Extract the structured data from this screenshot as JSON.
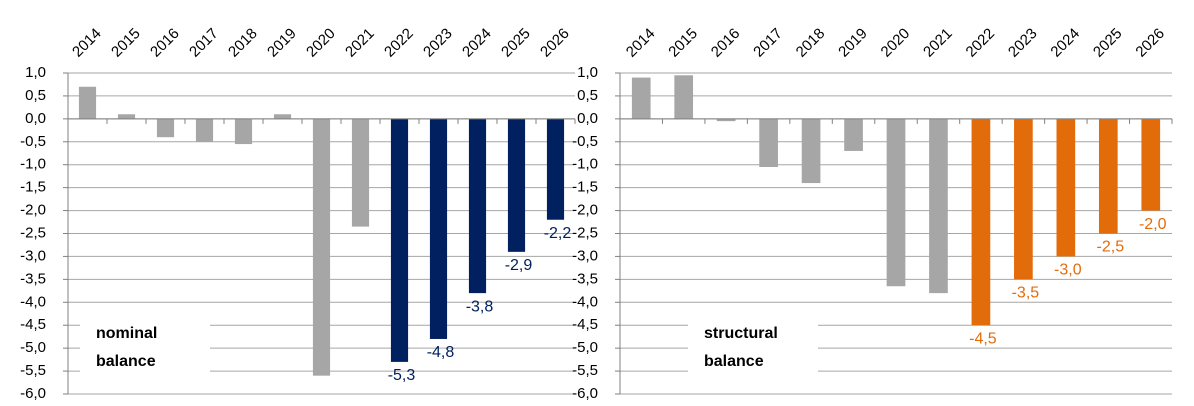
{
  "chart_data": [
    {
      "type": "bar",
      "annotation": [
        "nominal",
        "balance"
      ],
      "categories": [
        "2014",
        "2015",
        "2016",
        "2017",
        "2018",
        "2019",
        "2020",
        "2021",
        "2022",
        "2023",
        "2024",
        "2025",
        "2026"
      ],
      "values": [
        0.7,
        0.1,
        -0.4,
        -0.5,
        -0.55,
        0.1,
        -5.6,
        -2.35,
        -5.3,
        -4.8,
        -3.8,
        -2.9,
        -2.2
      ],
      "value_labels": [
        null,
        null,
        null,
        null,
        null,
        null,
        null,
        null,
        "-5,3",
        "-4,8",
        "-3,8",
        "-2,9",
        "-2,2"
      ],
      "colors": [
        "#a6a6a6",
        "#a6a6a6",
        "#a6a6a6",
        "#a6a6a6",
        "#a6a6a6",
        "#a6a6a6",
        "#a6a6a6",
        "#a6a6a6",
        "#002060",
        "#002060",
        "#002060",
        "#002060",
        "#002060"
      ],
      "ylim": [
        -6,
        1
      ],
      "yticks": [
        {
          "value": 1,
          "label": "1,0"
        },
        {
          "value": 0.5,
          "label": "0,5"
        },
        {
          "value": 0,
          "label": "0,0"
        },
        {
          "value": -0.5,
          "label": "-0,5"
        },
        {
          "value": -1,
          "label": "-1,0"
        },
        {
          "value": -1.5,
          "label": "-1,5"
        },
        {
          "value": -2,
          "label": "-2,0"
        },
        {
          "value": -2.5,
          "label": "-2,5"
        },
        {
          "value": -3,
          "label": "-3,0"
        },
        {
          "value": -3.5,
          "label": "-3,5"
        },
        {
          "value": -4,
          "label": "-4,0"
        },
        {
          "value": -4.5,
          "label": "-4,5"
        },
        {
          "value": -5,
          "label": "-5,0"
        },
        {
          "value": -5.5,
          "label": "-5,5"
        },
        {
          "value": -6,
          "label": "-6,0"
        }
      ],
      "grid": true
    },
    {
      "type": "bar",
      "annotation": [
        "structural",
        "balance"
      ],
      "categories": [
        "2014",
        "2015",
        "2016",
        "2017",
        "2018",
        "2019",
        "2020",
        "2021",
        "2022",
        "2023",
        "2024",
        "2025",
        "2026"
      ],
      "values": [
        0.9,
        0.95,
        -0.05,
        -1.05,
        -1.4,
        -0.7,
        -3.65,
        -3.8,
        -4.5,
        -3.5,
        -3.0,
        -2.5,
        -2.0
      ],
      "value_labels": [
        null,
        null,
        null,
        null,
        null,
        null,
        null,
        null,
        "-4,5",
        "-3,5",
        "-3,0",
        "-2,5",
        "-2,0"
      ],
      "colors": [
        "#a6a6a6",
        "#a6a6a6",
        "#a6a6a6",
        "#a6a6a6",
        "#a6a6a6",
        "#a6a6a6",
        "#a6a6a6",
        "#a6a6a6",
        "#e36c0a",
        "#e36c0a",
        "#e36c0a",
        "#e36c0a",
        "#e36c0a"
      ],
      "ylim": [
        -6,
        1
      ],
      "yticks": [
        {
          "value": 1,
          "label": "1,0"
        },
        {
          "value": 0.5,
          "label": "0,5"
        },
        {
          "value": 0,
          "label": "0,0"
        },
        {
          "value": -0.5,
          "label": "-0,5"
        },
        {
          "value": -1,
          "label": "-1,0"
        },
        {
          "value": -1.5,
          "label": "-1,5"
        },
        {
          "value": -2,
          "label": "-2,0"
        },
        {
          "value": -2.5,
          "label": "-2,5"
        },
        {
          "value": -3,
          "label": "-3,0"
        },
        {
          "value": -3.5,
          "label": "-3,5"
        },
        {
          "value": -4,
          "label": "-4,0"
        },
        {
          "value": -4.5,
          "label": "-4,5"
        },
        {
          "value": -5,
          "label": "-5,0"
        },
        {
          "value": -5.5,
          "label": "-5,5"
        },
        {
          "value": -6,
          "label": "-6,0"
        }
      ],
      "grid": true
    }
  ]
}
